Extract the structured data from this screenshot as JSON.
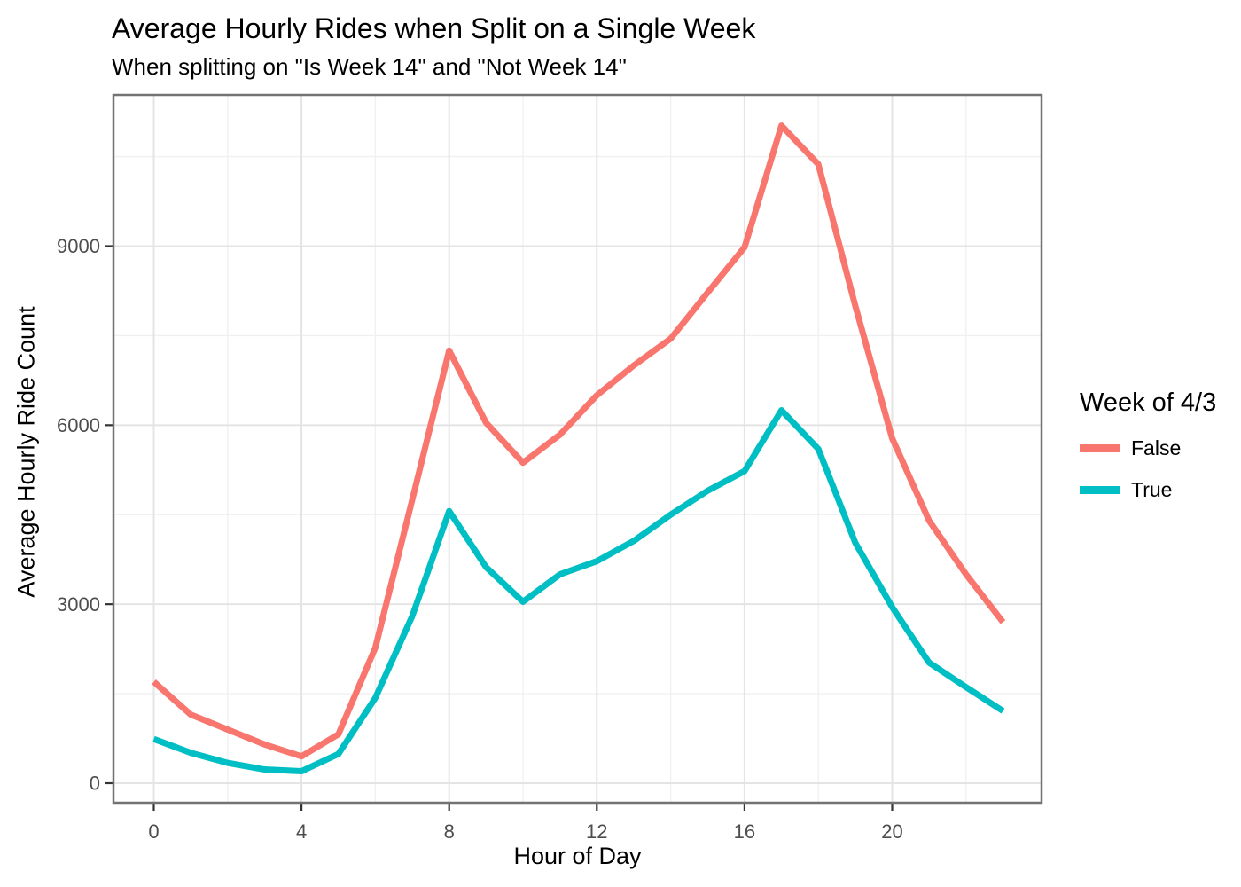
{
  "chart_data": {
    "type": "line",
    "title": "Average Hourly Rides when Split on a Single Week",
    "subtitle": "When splitting on \"Is Week 14\" and \"Not Week 14\"",
    "xlabel": "Hour of Day",
    "ylabel": "Average Hourly Ride Count",
    "x": [
      0,
      1,
      2,
      3,
      4,
      5,
      6,
      7,
      8,
      9,
      10,
      11,
      12,
      13,
      14,
      15,
      16,
      17,
      18,
      19,
      20,
      21,
      22,
      23
    ],
    "series": [
      {
        "name": "False",
        "color": "#F8766D",
        "values": [
          1700,
          1150,
          900,
          650,
          450,
          820,
          2270,
          4750,
          7250,
          6040,
          5370,
          5840,
          6500,
          7000,
          7450,
          8220,
          8980,
          11020,
          10370,
          8000,
          5780,
          4400,
          3500,
          2700
        ]
      },
      {
        "name": "True",
        "color": "#00BFC4",
        "values": [
          740,
          510,
          340,
          230,
          200,
          490,
          1430,
          2800,
          4560,
          3620,
          3040,
          3500,
          3720,
          4060,
          4500,
          4900,
          5230,
          6250,
          5600,
          4030,
          2950,
          2020,
          1610,
          1210
        ]
      }
    ],
    "legend": {
      "title": "Week of 4/3",
      "position": "right"
    },
    "x_ticks": [
      0,
      4,
      8,
      12,
      16,
      20
    ],
    "x_tick_labels": [
      "0",
      "4",
      "8",
      "12",
      "16",
      "20"
    ],
    "x_minor_ticks": [
      2,
      6,
      10,
      14,
      18,
      22
    ],
    "y_ticks": [
      0,
      3000,
      6000,
      9000
    ],
    "y_tick_labels": [
      "0",
      "3000",
      "6000",
      "9000"
    ],
    "y_minor_ticks": [
      1500,
      4500,
      7500,
      10500
    ],
    "xlim": [
      -1.1,
      24.1
    ],
    "ylim": [
      -330,
      11530
    ],
    "grid": "on",
    "style": {
      "grid_major_color": "#E4E4E4",
      "grid_minor_color": "#F0F0F0",
      "panel_border_color": "#737373",
      "tick_mark_color": "#333333",
      "tick_label_color": "#4D4D4D",
      "line_width": 7
    }
  }
}
